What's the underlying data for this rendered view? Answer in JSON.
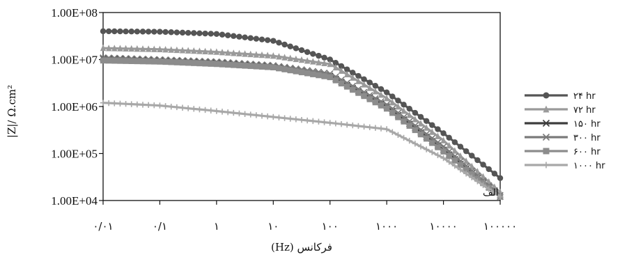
{
  "chart_data": {
    "type": "line",
    "title": "",
    "xlabel": "فرکانس (Hz)",
    "ylabel": "|Z|/ Ω.cm²",
    "x_scale": "log",
    "y_scale": "log",
    "xlim": [
      0.01,
      100000
    ],
    "ylim": [
      10000,
      100000000
    ],
    "grid": false,
    "legend_position": "right",
    "annotation": "الف",
    "x_ticks": [
      {
        "value": 0.01,
        "label": "۰/۰۱"
      },
      {
        "value": 0.1,
        "label": "۰/۱"
      },
      {
        "value": 1,
        "label": "۱"
      },
      {
        "value": 10,
        "label": "۱۰"
      },
      {
        "value": 100,
        "label": "۱۰۰"
      },
      {
        "value": 1000,
        "label": "۱۰۰۰"
      },
      {
        "value": 10000,
        "label": "۱۰۰۰۰"
      },
      {
        "value": 100000,
        "label": "۱۰۰۰۰۰"
      }
    ],
    "y_ticks": [
      {
        "value": 10000,
        "label": "1.00E+04"
      },
      {
        "value": 100000,
        "label": "1.00E+05"
      },
      {
        "value": 1000000,
        "label": "1.00E+06"
      },
      {
        "value": 10000000,
        "label": "1.00E+07"
      },
      {
        "value": 100000000,
        "label": "1.00E+08"
      }
    ],
    "x": [
      0.01,
      0.1,
      1,
      10,
      100,
      1000,
      10000,
      100000
    ],
    "series": [
      {
        "name": "۲۴ hr",
        "color": "#555555",
        "marker": "circle",
        "values": [
          40000000,
          39000000,
          35000000,
          25000000,
          10000000,
          2000000,
          270000,
          30000
        ]
      },
      {
        "name": "۷۲ hr",
        "color": "#9a9a9a",
        "marker": "triangle",
        "values": [
          17500000,
          16500000,
          14500000,
          12000000,
          8000000,
          1500000,
          190000,
          15000
        ]
      },
      {
        "name": "۱۵۰ hr",
        "color": "#3d3d3d",
        "marker": "x",
        "values": [
          10500000,
          9500000,
          8500000,
          7000000,
          4500000,
          1000000,
          120000,
          12000
        ]
      },
      {
        "name": "۳۰۰ hr",
        "color": "#7a7a7a",
        "marker": "x",
        "values": [
          11000000,
          10000000,
          9000000,
          7500000,
          5000000,
          1100000,
          140000,
          13000
        ]
      },
      {
        "name": "۶۰۰ hr",
        "color": "#8c8c8c",
        "marker": "square",
        "values": [
          9500000,
          9000000,
          8000000,
          6800000,
          4200000,
          900000,
          110000,
          12000
        ]
      },
      {
        "name": "۱۰۰۰ hr",
        "color": "#a8a8a8",
        "marker": "plus",
        "values": [
          1200000,
          1050000,
          800000,
          600000,
          450000,
          330000,
          80000,
          12000
        ]
      }
    ]
  }
}
